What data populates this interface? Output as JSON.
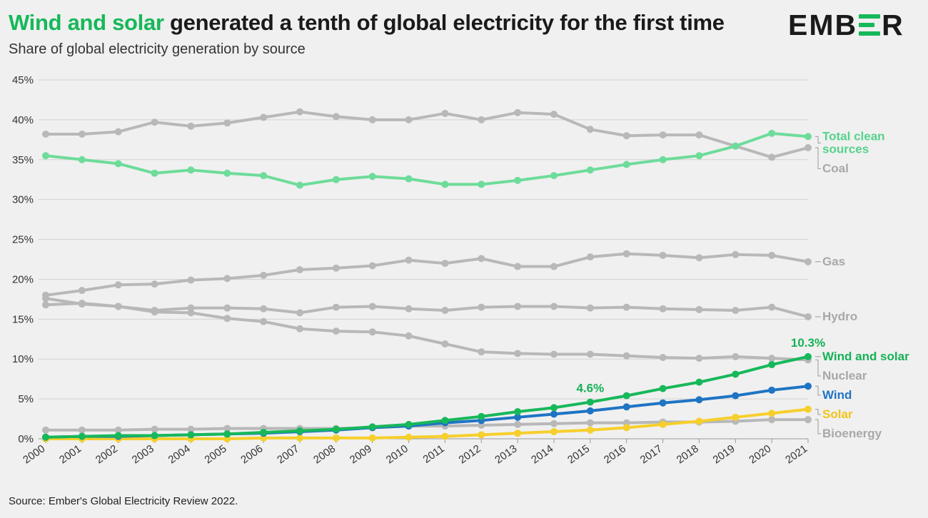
{
  "header": {
    "title_highlight": "Wind and solar",
    "title_rest": " generated a tenth of global electricity for the first time",
    "subtitle": "Share of global electricity generation by source",
    "logo_left": "EMB",
    "logo_right": "R",
    "logo_mark": "E",
    "source": "Source: Ember's Global Electricity Review 2022."
  },
  "chart_data": {
    "type": "line",
    "title": "Wind and solar generated a tenth of global electricity for the first time",
    "subtitle": "Share of global electricity generation by source",
    "x": [
      2000,
      2001,
      2002,
      2003,
      2004,
      2005,
      2006,
      2007,
      2008,
      2009,
      2010,
      2011,
      2012,
      2013,
      2014,
      2015,
      2016,
      2017,
      2018,
      2019,
      2020,
      2021
    ],
    "ylim": [
      0,
      45
    ],
    "yticks": [
      0,
      5,
      10,
      15,
      20,
      25,
      30,
      35,
      40,
      45
    ],
    "ytick_suffix": "%",
    "grid": true,
    "series": [
      {
        "name": "Coal",
        "label": [
          "Coal"
        ],
        "color": "#b8b8b8",
        "label_color": "#a8a8a8",
        "values": [
          38.2,
          38.2,
          38.5,
          39.7,
          39.2,
          39.6,
          40.3,
          41.0,
          40.4,
          40.0,
          40.0,
          40.8,
          40.0,
          40.9,
          40.7,
          38.8,
          38.0,
          38.1,
          38.1,
          36.7,
          35.3,
          36.5
        ]
      },
      {
        "name": "Total clean sources",
        "label": [
          "Total clean",
          "sources"
        ],
        "color": "#6ddc9a",
        "label_color": "#55d38b",
        "values": [
          35.5,
          35.0,
          34.5,
          33.3,
          33.7,
          33.3,
          33.0,
          31.8,
          32.5,
          32.9,
          32.6,
          31.9,
          31.9,
          32.4,
          33.0,
          33.7,
          34.4,
          35.0,
          35.5,
          36.7,
          38.3,
          37.9
        ]
      },
      {
        "name": "Gas",
        "label": [
          "Gas"
        ],
        "color": "#b8b8b8",
        "label_color": "#a8a8a8",
        "values": [
          18.0,
          18.6,
          19.3,
          19.4,
          19.9,
          20.1,
          20.5,
          21.2,
          21.4,
          21.7,
          22.4,
          22.0,
          22.6,
          21.6,
          21.6,
          22.8,
          23.2,
          23.0,
          22.7,
          23.1,
          23.0,
          22.2
        ]
      },
      {
        "name": "Hydro",
        "label": [
          "Hydro"
        ],
        "color": "#b8b8b8",
        "label_color": "#a8a8a8",
        "values": [
          16.8,
          17.0,
          16.6,
          16.1,
          16.4,
          16.4,
          16.3,
          15.8,
          16.5,
          16.6,
          16.3,
          16.1,
          16.5,
          16.6,
          16.6,
          16.4,
          16.5,
          16.3,
          16.2,
          16.1,
          16.5,
          15.3
        ]
      },
      {
        "name": "Nuclear",
        "label": [
          "Nuclear"
        ],
        "color": "#b8b8b8",
        "label_color": "#a8a8a8",
        "values": [
          17.6,
          16.9,
          16.6,
          15.9,
          15.8,
          15.1,
          14.7,
          13.8,
          13.5,
          13.4,
          12.9,
          11.9,
          10.9,
          10.7,
          10.6,
          10.6,
          10.4,
          10.2,
          10.1,
          10.3,
          10.1,
          9.9
        ]
      },
      {
        "name": "Bioenergy",
        "label": [
          "Bioenergy"
        ],
        "color": "#b8b8b8",
        "label_color": "#a8a8a8",
        "values": [
          1.1,
          1.1,
          1.1,
          1.2,
          1.2,
          1.3,
          1.3,
          1.3,
          1.3,
          1.4,
          1.6,
          1.6,
          1.7,
          1.8,
          1.9,
          2.0,
          2.0,
          2.1,
          2.1,
          2.2,
          2.4,
          2.4
        ]
      },
      {
        "name": "Solar",
        "label": [
          "Solar"
        ],
        "color": "#f6cf2b",
        "label_color": "#f2c418",
        "values": [
          0.0,
          0.0,
          0.0,
          0.0,
          0.0,
          0.0,
          0.1,
          0.1,
          0.1,
          0.1,
          0.2,
          0.3,
          0.5,
          0.7,
          0.9,
          1.1,
          1.4,
          1.8,
          2.2,
          2.7,
          3.2,
          3.7
        ]
      },
      {
        "name": "Wind",
        "label": [
          "Wind"
        ],
        "color": "#1f74c4",
        "label_color": "#1f74c4",
        "values": [
          0.2,
          0.3,
          0.3,
          0.4,
          0.5,
          0.6,
          0.7,
          0.9,
          1.1,
          1.4,
          1.6,
          2.0,
          2.3,
          2.7,
          3.1,
          3.5,
          4.0,
          4.5,
          4.9,
          5.4,
          6.1,
          6.6
        ]
      },
      {
        "name": "Wind and solar",
        "label": [
          "Wind and solar"
        ],
        "color": "#17b85a",
        "label_color": "#16b155",
        "values": [
          0.2,
          0.3,
          0.4,
          0.4,
          0.5,
          0.6,
          0.8,
          1.0,
          1.2,
          1.5,
          1.8,
          2.3,
          2.8,
          3.4,
          3.9,
          4.6,
          5.4,
          6.3,
          7.1,
          8.1,
          9.3,
          10.3
        ]
      }
    ],
    "annotations": [
      {
        "x": 2015,
        "series": "Wind and solar",
        "text": "4.6%"
      },
      {
        "x": 2021,
        "series": "Wind and solar",
        "text": "10.3%"
      }
    ]
  }
}
